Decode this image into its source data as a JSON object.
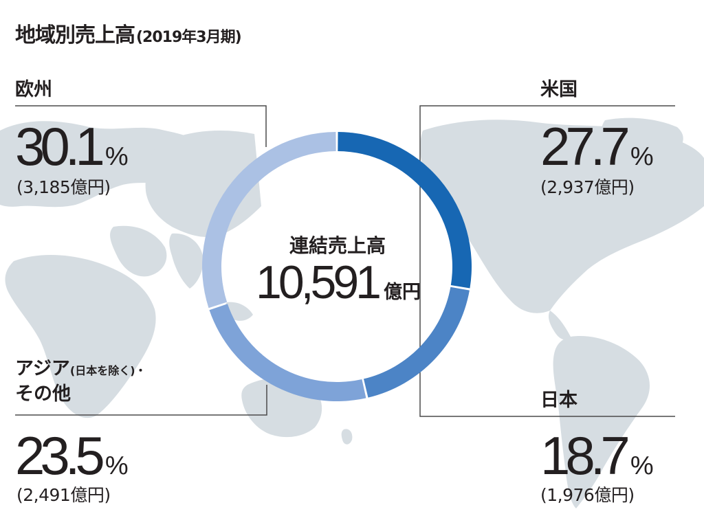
{
  "colors": {
    "map": "#d6dde2",
    "frame": "#4a4a4a",
    "text": "#231f20"
  },
  "title": {
    "main": "地域別売上高",
    "sub": "(2019年3月期)"
  },
  "center": {
    "label": "連結売上高",
    "value": "10,591",
    "unit": "億円"
  },
  "regions": [
    {
      "id": "europe",
      "label": "欧州",
      "label_note": "",
      "label_line2": "",
      "percent": "30.1",
      "percent_unit": "%",
      "amount": "(3,185億円)"
    },
    {
      "id": "usa",
      "label": "米国",
      "label_note": "",
      "label_line2": "",
      "percent": "27.7",
      "percent_unit": "%",
      "amount": "(2,937億円)"
    },
    {
      "id": "asia",
      "label": "アジア",
      "label_note": "(日本を除く)・",
      "label_line2": "その他",
      "percent": "23.5",
      "percent_unit": "%",
      "amount": "(2,491億円)"
    },
    {
      "id": "japan",
      "label": "日本",
      "label_note": "",
      "label_line2": "",
      "percent": "18.7",
      "percent_unit": "%",
      "amount": "(1,976億円)"
    }
  ],
  "chart_data": {
    "type": "pie",
    "style": "donut",
    "title": "地域別売上高(2019年3月期)",
    "center_text": "連結売上高 10,591億円",
    "order": "clockwise from 12 o'clock",
    "slices": [
      {
        "label": "米国",
        "value": 27.7,
        "amount": "2,937億円",
        "color": "#1767b3"
      },
      {
        "label": "日本",
        "value": 18.7,
        "amount": "1,976億円",
        "color": "#4c84c6"
      },
      {
        "label": "アジア(日本を除く)・その他",
        "value": 23.5,
        "amount": "2,491億円",
        "color": "#7ea3d8"
      },
      {
        "label": "欧州",
        "value": 30.1,
        "amount": "3,185億円",
        "color": "#abc1e4"
      }
    ]
  }
}
